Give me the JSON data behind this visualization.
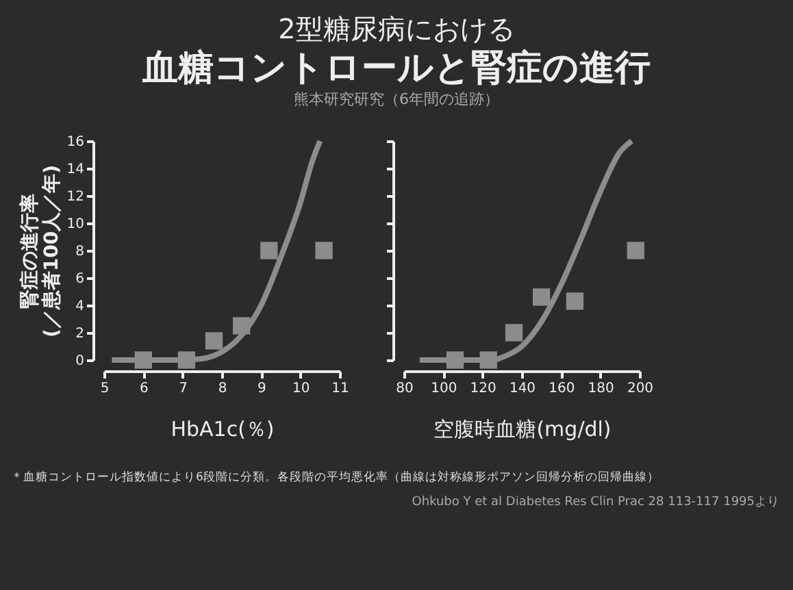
{
  "chart_data": [
    {
      "type": "scatter",
      "title": "2型糖尿病における",
      "subtitle": "血糖コントロールと腎症の進行",
      "annotations": [
        "熊本研究研究（6年間の追跡）",
        "＊血糖コントロール指数値により6段階に分類。各段階の平均悪化率（曲線は対称線形ポアソン回帰分析の回帰曲線）",
        "Ohkubo Y et al Diabetes Res Clin Prac 28 113-117 1995より"
      ],
      "xlabel": "HbA1c(％)",
      "ylabel": "腎症の進行率\n(／患者100人／年)",
      "xlim": [
        5,
        11
      ],
      "xticks": [
        5,
        6,
        7,
        8,
        9,
        10,
        11
      ],
      "ylim": [
        0,
        16
      ],
      "yticks": [
        0,
        2,
        4,
        6,
        8,
        10,
        12,
        14,
        16
      ],
      "series": [
        {
          "type": "line",
          "color": "#8c8c8c",
          "x": [
            5.2,
            7,
            7.5,
            8,
            8.5,
            9,
            9.5,
            10,
            10.3,
            10.5
          ],
          "values": [
            0,
            0,
            0.1,
            0.6,
            1.8,
            4,
            7.5,
            11.5,
            14.5,
            16
          ]
        },
        {
          "marker": "square",
          "color": "#8c8c8c",
          "x": [
            6.0,
            7.1,
            7.8,
            8.5,
            9.2,
            10.6
          ],
          "values": [
            0,
            0,
            1.4,
            2.5,
            8,
            8
          ]
        }
      ]
    },
    {
      "type": "scatter",
      "xlabel": "空腹時血糖(mg/dl)",
      "xlim": [
        80,
        200
      ],
      "xticks": [
        80,
        100,
        120,
        140,
        160,
        180,
        200
      ],
      "ylim": [
        0,
        16
      ],
      "yticks": [
        0,
        2,
        4,
        6,
        8,
        10,
        12,
        14,
        16
      ],
      "tick_labels": "x",
      "series": [
        {
          "type": "line",
          "color": "#8c8c8c",
          "x": [
            88,
            125,
            130,
            140,
            150,
            160,
            170,
            180,
            190,
            196
          ],
          "values": [
            0,
            0,
            0.2,
            1,
            2.8,
            5.5,
            8.8,
            12.3,
            15.2,
            16
          ]
        },
        {
          "marker": "square",
          "color": "#8c8c8c",
          "x": [
            106,
            123,
            136,
            150,
            167,
            198
          ],
          "values": [
            0,
            0,
            2,
            4.6,
            4.3,
            8
          ]
        }
      ]
    }
  ]
}
